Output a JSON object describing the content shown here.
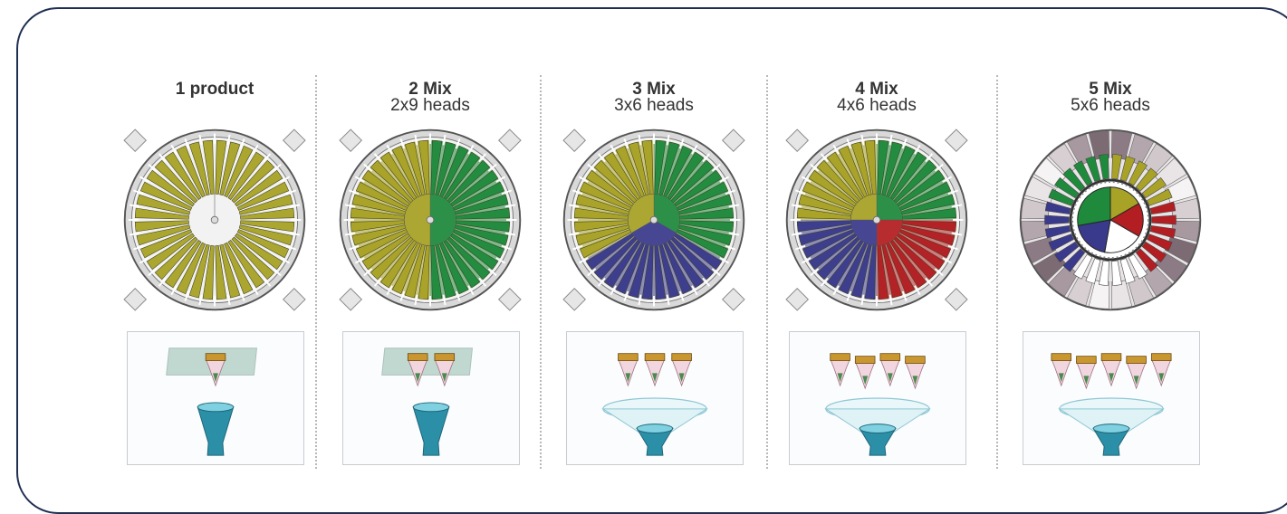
{
  "columns": [
    {
      "title": "1 product",
      "subtitle": "",
      "mix": 1,
      "heads": 1
    },
    {
      "title": "2 Mix",
      "subtitle": "2x9 heads",
      "mix": 2,
      "heads": 2
    },
    {
      "title": "3 Mix",
      "subtitle": "3x6 heads",
      "mix": 3,
      "heads": 3
    },
    {
      "title": "4 Mix",
      "subtitle": "4x6 heads",
      "mix": 4,
      "heads": 4
    },
    {
      "title": "5 Mix",
      "subtitle": "5x6 heads",
      "mix": 5,
      "heads": 5
    }
  ],
  "colors": {
    "frame": "#1f2f52",
    "olive": "#a8a226",
    "green": "#1f8a3c",
    "blue": "#3a3a8c",
    "red": "#b21e22",
    "white": "#ffffff",
    "funnel": "#2c8fa8",
    "bucket": "#c9962f"
  }
}
